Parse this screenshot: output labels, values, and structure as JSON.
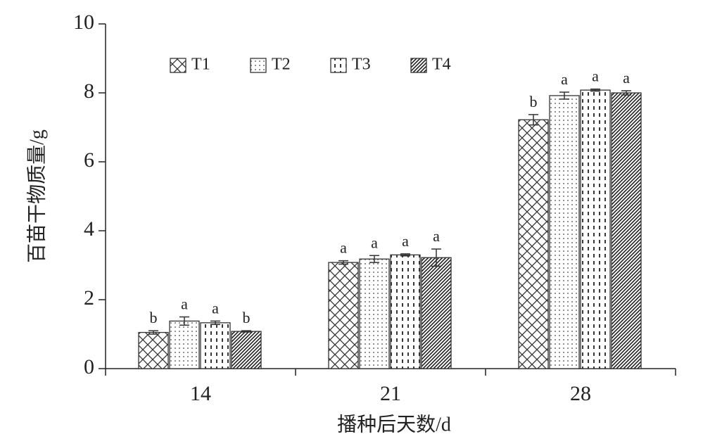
{
  "chart_data": {
    "type": "bar",
    "x_label": "播种后天数/d",
    "y_label": "百苗干物质量/g",
    "categories": [
      "14",
      "21",
      "28"
    ],
    "series": [
      {
        "name": "T1",
        "color": "#333333",
        "pattern": "crosshatch",
        "values": [
          1.05,
          3.08,
          7.22
        ],
        "errors": [
          0.05,
          0.05,
          0.15
        ],
        "labels": [
          "b",
          "a",
          "b"
        ]
      },
      {
        "name": "T2",
        "color": "#333333",
        "pattern": "dots",
        "values": [
          1.38,
          3.18,
          7.92
        ],
        "errors": [
          0.12,
          0.1,
          0.1
        ],
        "labels": [
          "a",
          "a",
          "a"
        ]
      },
      {
        "name": "T3",
        "color": "#333333",
        "pattern": "dashes",
        "values": [
          1.33,
          3.3,
          8.08
        ],
        "errors": [
          0.05,
          0.03,
          0.03
        ],
        "labels": [
          "a",
          "a",
          "a"
        ]
      },
      {
        "name": "T4",
        "color": "#333333",
        "pattern": "diagonal",
        "values": [
          1.08,
          3.22,
          8.0
        ],
        "errors": [
          0.02,
          0.25,
          0.06
        ],
        "labels": [
          "b",
          "a",
          "a"
        ]
      }
    ],
    "ylim": [
      0,
      10
    ],
    "yticks": [
      0,
      2,
      4,
      6,
      8,
      10
    ],
    "legend": "top-left"
  }
}
